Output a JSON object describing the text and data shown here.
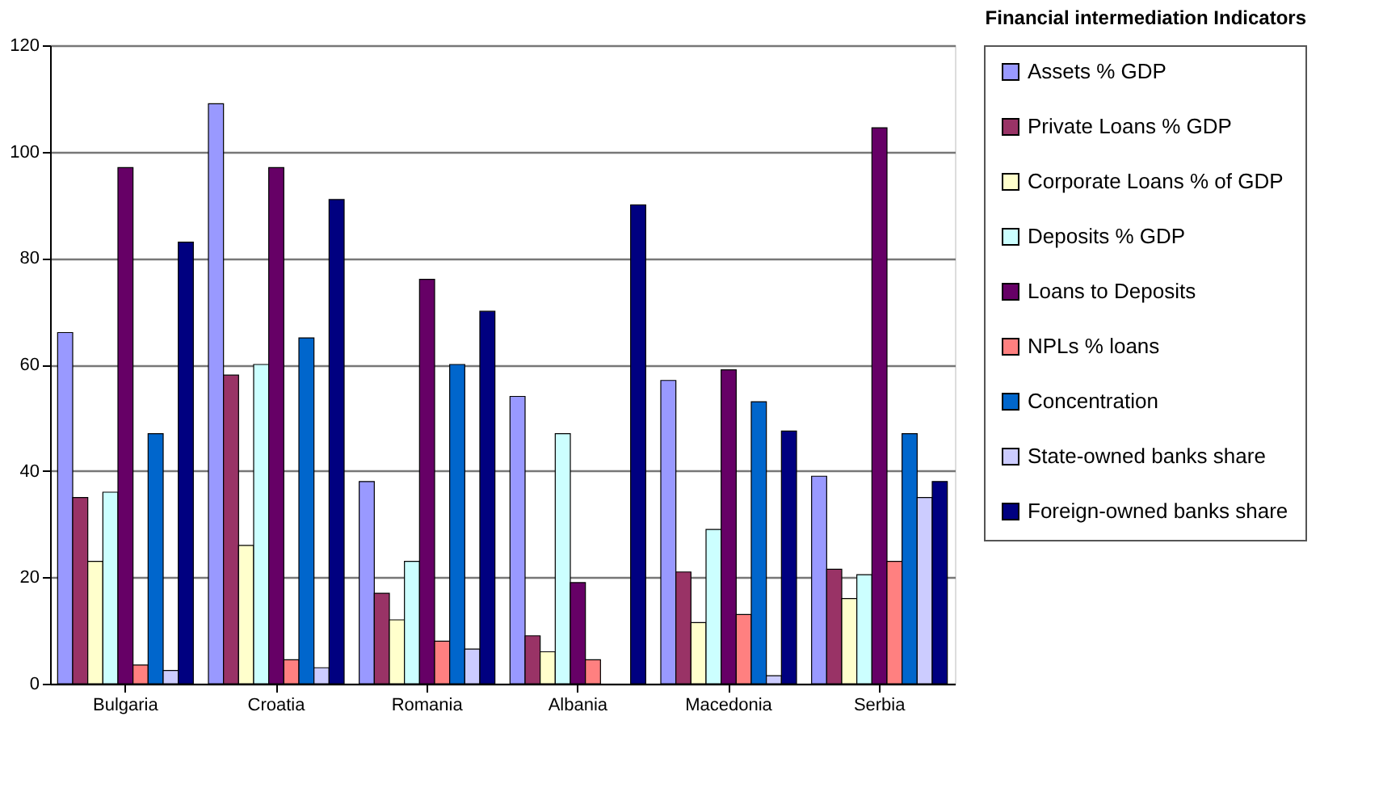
{
  "chart_data": {
    "type": "bar",
    "title": "Financial intermediation Indicators",
    "categories": [
      "Bulgaria",
      "Croatia",
      "Romania",
      "Albania",
      "Macedonia",
      "Serbia"
    ],
    "series": [
      {
        "name": "Assets % GDP",
        "color": "#9999ff",
        "values": [
          66,
          109,
          38,
          54,
          57,
          39
        ]
      },
      {
        "name": "Private Loans % GDP",
        "color": "#993366",
        "values": [
          35,
          58,
          17,
          9,
          21,
          21.5
        ]
      },
      {
        "name": "Corporate Loans % of GDP",
        "color": "#ffffcc",
        "values": [
          23,
          26,
          12,
          6,
          11.5,
          16
        ]
      },
      {
        "name": "Deposits % GDP",
        "color": "#ccffff",
        "values": [
          36,
          60,
          23,
          47,
          29,
          20.5
        ]
      },
      {
        "name": "Loans to Deposits",
        "color": "#660066",
        "values": [
          97,
          97,
          76,
          19,
          59,
          104.5
        ]
      },
      {
        "name": "NPLs % loans",
        "color": "#ff8080",
        "values": [
          3.5,
          4.5,
          8,
          4.5,
          13,
          23
        ]
      },
      {
        "name": "Concentration",
        "color": "#0066cc",
        "values": [
          47,
          65,
          60,
          null,
          53,
          47
        ]
      },
      {
        "name": "State-owned banks share",
        "color": "#ccccff",
        "values": [
          2.5,
          3,
          6.5,
          null,
          1.5,
          35
        ]
      },
      {
        "name": "Foreign-owned banks share",
        "color": "#000080",
        "values": [
          83,
          91,
          70,
          90,
          47.5,
          38
        ]
      }
    ],
    "ylim": [
      0,
      120
    ],
    "yticks": [
      0,
      20,
      40,
      60,
      80,
      100,
      120
    ],
    "grid": "y",
    "legend": "right"
  }
}
